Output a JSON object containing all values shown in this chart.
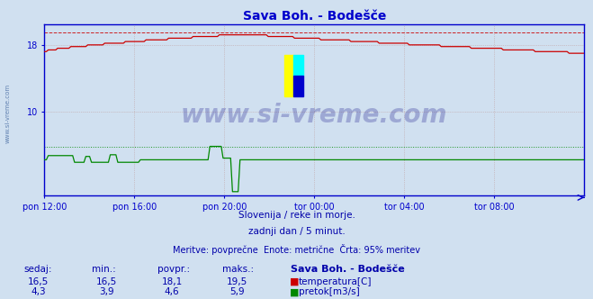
{
  "title": "Sava Boh. - Bodešče",
  "title_color": "#0000cc",
  "bg_color": "#d0e0f0",
  "plot_bg_color": "#d0e0f0",
  "grid_color_dotted": "#c08080",
  "grid_color_solid": "#b0b0c0",
  "x_labels": [
    "pon 12:00",
    "pon 16:00",
    "pon 20:00",
    "tor 00:00",
    "tor 04:00",
    "tor 08:00"
  ],
  "y_ticks": [
    10,
    18
  ],
  "temp_color": "#cc0000",
  "flow_color": "#008800",
  "dashed_color": "#cc0000",
  "flow_dashed_color": "#008800",
  "axis_color": "#0000cc",
  "spine_color": "#0000cc",
  "watermark_text": "www.si-vreme.com",
  "watermark_color": "#1a1a8c",
  "footer_line1": "Slovenija / reke in morje.",
  "footer_line2": "zadnji dan / 5 minut.",
  "footer_line3": "Meritve: povprečne  Enote: metrične  Črta: 95% meritev",
  "footer_color": "#0000aa",
  "table_headers": [
    "sedaj:",
    "min.:",
    "povpr.:",
    "maks.:",
    "Sava Boh. - Bodešče"
  ],
  "table_temp": [
    "16,5",
    "16,5",
    "18,1",
    "19,5"
  ],
  "table_flow": [
    "4,3",
    "3,9",
    "4,6",
    "5,9"
  ],
  "table_color": "#0000aa",
  "temp_max": 19.5,
  "flow_max": 5.9,
  "y_min": 0,
  "y_max": 20.5,
  "n_points": 288
}
